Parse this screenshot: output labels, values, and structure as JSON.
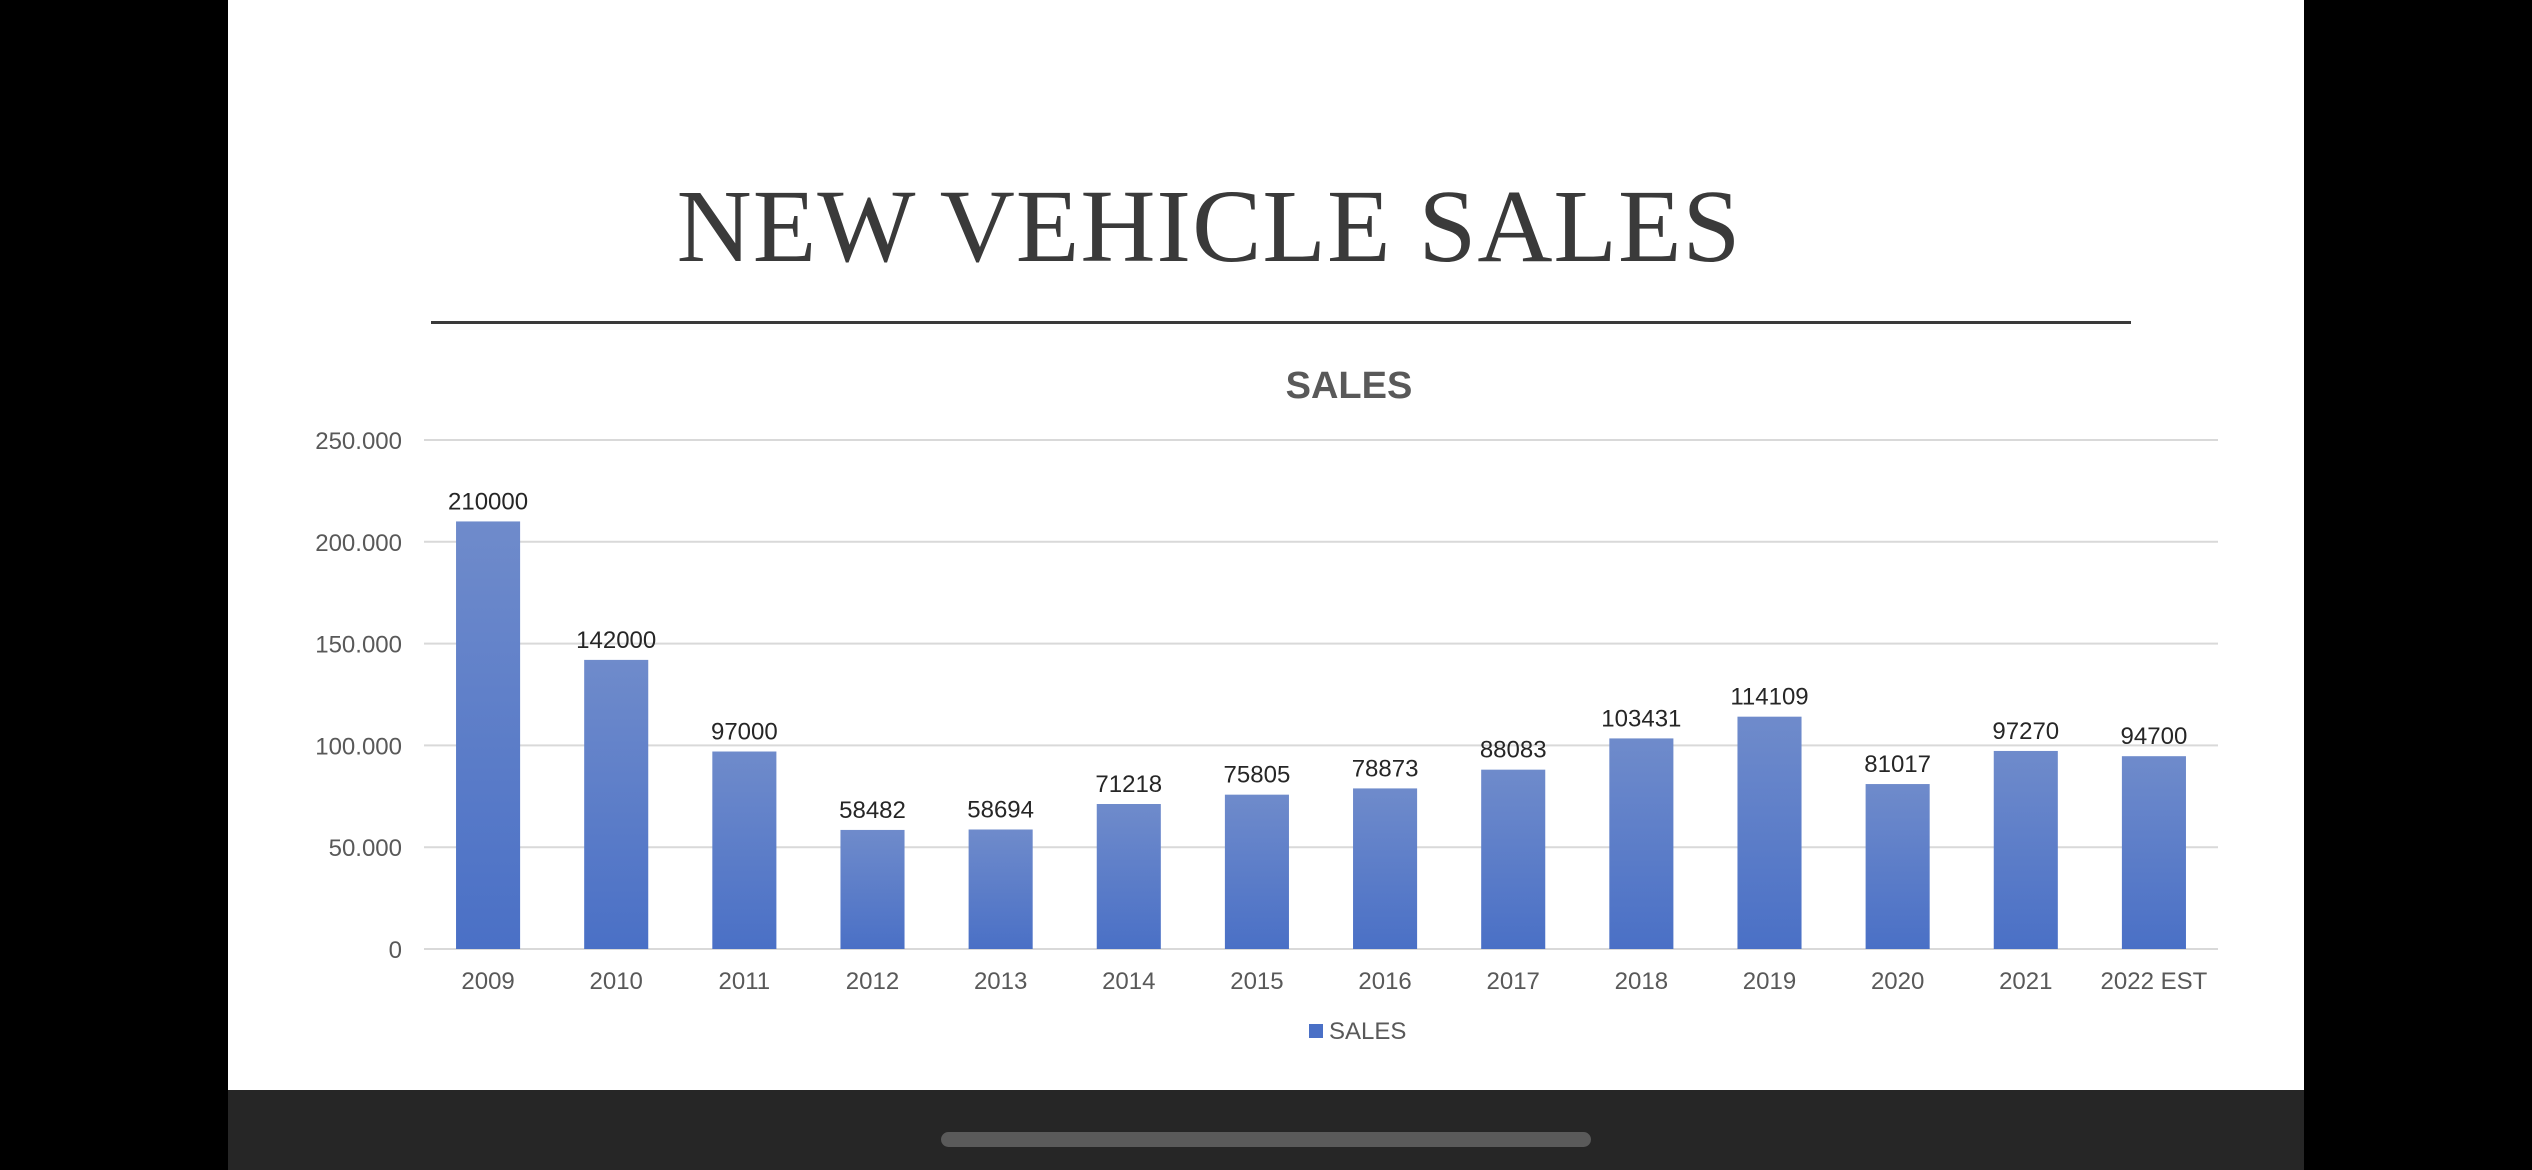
{
  "slide": {
    "title": "NEW VEHICLE SALES"
  },
  "colors": {
    "bar_top": "#6f8bcb",
    "bar_bottom": "#4a70c6",
    "gridline": "#d9d9d9",
    "text": "#595959",
    "data_label": "#262626"
  },
  "chart_data": {
    "type": "bar",
    "title": "SALES",
    "xlabel": "",
    "ylabel": "",
    "ylim": [
      0,
      250000
    ],
    "y_ticks": [
      0,
      50000,
      100000,
      150000,
      200000,
      250000
    ],
    "y_tick_labels": [
      "0",
      "50.000",
      "100.000",
      "150.000",
      "200.000",
      "250.000"
    ],
    "categories": [
      "2009",
      "2010",
      "2011",
      "2012",
      "2013",
      "2014",
      "2015",
      "2016",
      "2017",
      "2018",
      "2019",
      "2020",
      "2021",
      "2022 EST"
    ],
    "series": [
      {
        "name": "SALES",
        "values": [
          210000,
          142000,
          97000,
          58482,
          58694,
          71218,
          75805,
          78873,
          88083,
          103431,
          114109,
          81017,
          97270,
          94700
        ]
      }
    ],
    "data_labels": true,
    "grid": true,
    "legend": "bottom"
  }
}
